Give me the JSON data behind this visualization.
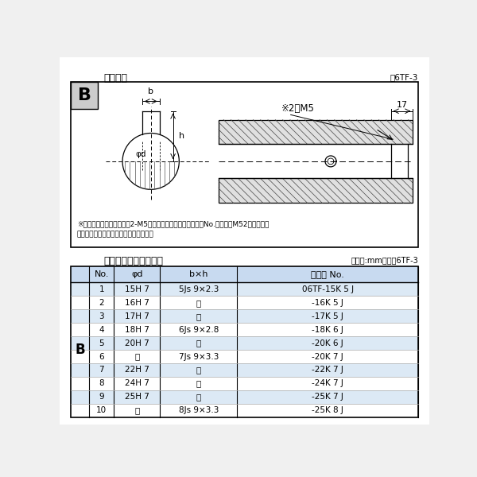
{
  "bg_color": "#f5f5f5",
  "border_color": "#000000",
  "top_section": {
    "title": "軸穴形状",
    "figure_label": "囶6TF-3",
    "note_line1": "※セットボルト用タップ（2-M5）が必要な場合は右記コードNo.の末尾にM52を付ける。",
    "note_line2": "（セットボルトは付属されています。）"
  },
  "bottom_section": {
    "title": "軸穴形状コード一覧表",
    "unit_label": "（単位:mm）　表6TF-3",
    "label_B": "B",
    "headers": [
      "No.",
      "φd",
      "b×h",
      "コード No."
    ],
    "rows": [
      [
        "1",
        "15H 7",
        "5Js 9×2.3",
        "06TF-15K 5 J"
      ],
      [
        "2",
        "16H 7",
        "〃",
        "-16K 5 J"
      ],
      [
        "3",
        "17H 7",
        "〃",
        "-17K 5 J"
      ],
      [
        "4",
        "18H 7",
        "6Js 9×2.8",
        "-18K 6 J"
      ],
      [
        "5",
        "20H 7",
        "〃",
        "-20K 6 J"
      ],
      [
        "6",
        "〃",
        "7Js 9×3.3",
        "-20K 7 J"
      ],
      [
        "7",
        "22H 7",
        "〃",
        "-22K 7 J"
      ],
      [
        "8",
        "24H 7",
        "〃",
        "-24K 7 J"
      ],
      [
        "9",
        "25H 7",
        "〃",
        "-25K 7 J"
      ],
      [
        "10",
        "〃",
        "8Js 9×3.3",
        "-25K 8 J"
      ]
    ],
    "row_colors": [
      "#dce9f5",
      "#ffffff",
      "#dce9f5",
      "#ffffff",
      "#dce9f5",
      "#ffffff",
      "#dce9f5",
      "#ffffff",
      "#dce9f5",
      "#ffffff"
    ],
    "header_color": "#c8daf0"
  }
}
